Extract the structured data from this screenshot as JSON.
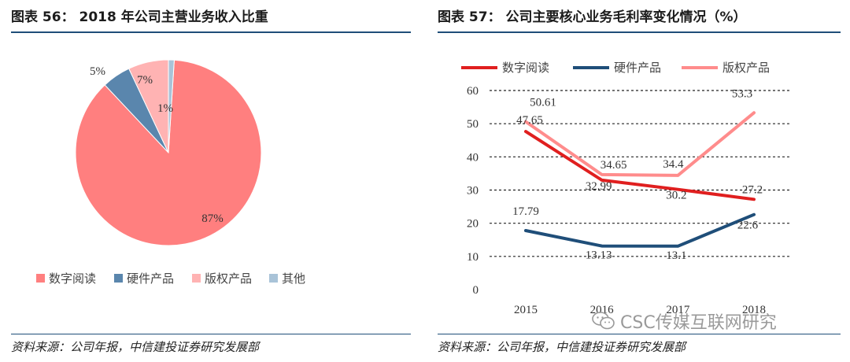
{
  "left": {
    "title": "图表 56：  2018 年公司主营业务收入比重",
    "source": "资料来源：公司年报，中信建投证券研究发展部"
  },
  "right": {
    "title": "图表 57：  公司主要核心业务毛利率变化情况（%）",
    "source": "资料来源：公司年报，中信建投证券研究发展部"
  },
  "watermark": {
    "icon": "wechat-icon",
    "text": "CSC传媒互联网研究"
  },
  "chart_data": [
    {
      "type": "pie",
      "title": "2018 年公司主营业务收入比重",
      "slices": [
        {
          "name": "数字阅读",
          "value": 87,
          "label": "87%",
          "color": "#ff7f7f"
        },
        {
          "name": "硬件产品",
          "value": 5,
          "label": "5%",
          "color": "#5a86ad"
        },
        {
          "name": "版权产品",
          "value": 7,
          "label": "7%",
          "color": "#ffb3b3"
        },
        {
          "name": "其他",
          "value": 1,
          "label": "1%",
          "color": "#a9c3d8"
        }
      ],
      "legend": [
        "数字阅读",
        "硬件产品",
        "版权产品",
        "其他"
      ],
      "legend_position": "bottom"
    },
    {
      "type": "line",
      "title": "公司主要核心业务毛利率变化情况（%）",
      "categories": [
        "2015",
        "2016",
        "2017",
        "2018"
      ],
      "series": [
        {
          "name": "数字阅读",
          "color": "#e01f1f",
          "values": [
            47.65,
            32.99,
            30.2,
            27.2
          ],
          "labels": [
            "47.65",
            "32.99",
            "30.2",
            "27.2"
          ]
        },
        {
          "name": "硬件产品",
          "color": "#1f4e79",
          "values": [
            17.79,
            13.13,
            13.1,
            22.6
          ],
          "labels": [
            "17.79",
            "13.13",
            "13.1",
            "22.6"
          ]
        },
        {
          "name": "版权产品",
          "color": "#ff8c8c",
          "values": [
            50.61,
            34.65,
            34.4,
            53.3
          ],
          "labels": [
            "50.61",
            "34.65",
            "34.4",
            "53.3"
          ]
        }
      ],
      "ylim": [
        0,
        60
      ],
      "yticks": [
        0,
        10,
        20,
        30,
        40,
        50,
        60
      ],
      "grid": true,
      "legend_position": "top"
    }
  ]
}
